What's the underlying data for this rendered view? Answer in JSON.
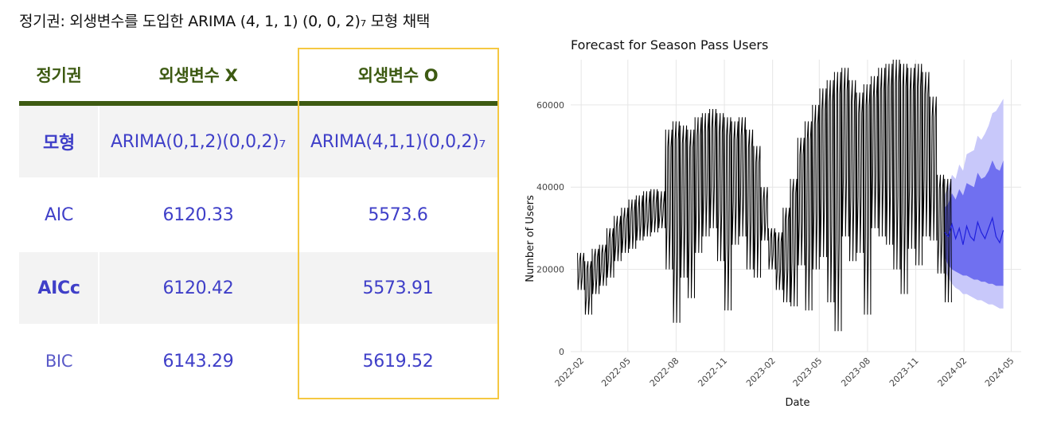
{
  "headline": "정기권: 외생변수를 도입한 ARIMA (4, 1, 1) (0, 0, 2)₇ 모형 채택",
  "table": {
    "headers": [
      "정기권",
      "외생변수 X",
      "외생변수 O"
    ],
    "rows": [
      {
        "label": "모형",
        "x": "ARIMA(0,1,2)(0,0,2)₇",
        "o": "ARIMA(4,1,1)(0,0,2)₇"
      },
      {
        "label": "AIC",
        "x": "6120.33",
        "o": "5573.6"
      },
      {
        "label": "AICc",
        "x": "6120.42",
        "o": "5573.91"
      },
      {
        "label": "BIC",
        "x": "6143.29",
        "o": "5619.52"
      }
    ],
    "colors": {
      "header_text": "#3d5a12",
      "body_text": "#3f3fc8",
      "highlight_border": "#f5c842",
      "rule": "#3d5a12"
    }
  },
  "chart_data": {
    "type": "line",
    "title": "Forecast for Season Pass Users",
    "xlabel": "Date",
    "ylabel": "Number of Users",
    "x_ticks": [
      "2022-02",
      "2022-05",
      "2022-08",
      "2022-11",
      "2023-02",
      "2023-05",
      "2023-08",
      "2023-11",
      "2024-02",
      "2024-05"
    ],
    "y_ticks": [
      "0",
      "20000",
      "40000",
      "60000"
    ],
    "ylim": [
      0,
      71000
    ],
    "xlim": [
      "2022-01-12",
      "2024-05-20"
    ],
    "grid": true,
    "colors": {
      "actual": "#000000",
      "forecast": "#2020dd",
      "pi80": "#7070f0",
      "pi95": "#c8c8fa"
    },
    "series": [
      {
        "role": "actual",
        "dates": [
          "2022-01-25",
          "2022-02-08",
          "2022-02-22",
          "2022-03-08",
          "2022-03-22",
          "2022-04-05",
          "2022-04-19",
          "2022-05-03",
          "2022-05-17",
          "2022-05-31",
          "2022-06-14",
          "2022-06-28",
          "2022-07-12",
          "2022-07-26",
          "2022-08-09",
          "2022-08-23",
          "2022-09-06",
          "2022-09-20",
          "2022-10-04",
          "2022-10-18",
          "2022-11-01",
          "2022-11-15",
          "2022-11-29",
          "2022-12-13",
          "2022-12-27",
          "2023-01-10",
          "2023-01-24",
          "2023-02-07",
          "2023-02-21",
          "2023-03-07",
          "2023-03-21",
          "2023-04-04",
          "2023-04-18",
          "2023-05-02",
          "2023-05-16",
          "2023-05-30",
          "2023-06-13",
          "2023-06-27",
          "2023-07-11",
          "2023-07-25",
          "2023-08-08",
          "2023-08-22",
          "2023-09-05",
          "2023-09-19",
          "2023-10-03",
          "2023-10-17",
          "2023-10-31",
          "2023-11-14",
          "2023-11-28",
          "2023-12-12",
          "2023-12-26"
        ],
        "high": [
          24000,
          22000,
          25000,
          26000,
          30000,
          33000,
          35000,
          37000,
          38000,
          39000,
          39500,
          39000,
          54000,
          56000,
          55000,
          54000,
          57000,
          58000,
          59000,
          58000,
          57000,
          56000,
          57000,
          54000,
          50000,
          40000,
          30000,
          29000,
          35000,
          42000,
          52000,
          56000,
          60000,
          64000,
          66000,
          68000,
          69000,
          66000,
          63000,
          65000,
          67000,
          69000,
          70000,
          71000,
          70000,
          69000,
          70000,
          68000,
          62000,
          43000,
          42000
        ],
        "low": [
          15000,
          9000,
          14000,
          16000,
          18000,
          22000,
          24000,
          25000,
          27000,
          28000,
          29000,
          30000,
          20000,
          7000,
          18000,
          13000,
          24000,
          28000,
          30000,
          22000,
          10000,
          26000,
          28000,
          20000,
          18000,
          27000,
          20000,
          15000,
          12000,
          11000,
          21000,
          10000,
          20000,
          23000,
          12000,
          5000,
          28000,
          22000,
          24000,
          9000,
          30000,
          28000,
          26000,
          20000,
          14000,
          25000,
          21000,
          28000,
          27000,
          19000,
          12000
        ]
      },
      {
        "role": "forecast",
        "dates": [
          "2023-12-26",
          "2024-01-02",
          "2024-01-09",
          "2024-01-16",
          "2024-01-23",
          "2024-01-30",
          "2024-02-06",
          "2024-02-13",
          "2024-02-20",
          "2024-02-27",
          "2024-03-05",
          "2024-03-12",
          "2024-03-19",
          "2024-03-26",
          "2024-04-02",
          "2024-04-09",
          "2024-04-16"
        ],
        "mean": [
          29000,
          28000,
          31000,
          27500,
          30000,
          26000,
          30500,
          28000,
          27000,
          31500,
          29000,
          27500,
          30000,
          32500,
          28000,
          26500,
          29500
        ],
        "lo80": [
          23000,
          21000,
          20000,
          19500,
          19000,
          18500,
          18500,
          18000,
          17500,
          17500,
          17000,
          17000,
          16500,
          16500,
          16000,
          16000,
          16000
        ],
        "hi80": [
          35000,
          36000,
          38500,
          37000,
          39500,
          38000,
          41000,
          40500,
          40000,
          43500,
          42000,
          42500,
          44000,
          46500,
          44500,
          44000,
          46500
        ],
        "lo95": [
          20000,
          18000,
          16500,
          15500,
          15000,
          14000,
          14000,
          13500,
          13000,
          12500,
          12500,
          12000,
          11500,
          11500,
          11000,
          10500,
          10500
        ],
        "hi95": [
          38000,
          40000,
          43000,
          42000,
          45500,
          44000,
          48000,
          48500,
          49000,
          52500,
          51500,
          53000,
          55000,
          58000,
          58500,
          60000,
          61500
        ]
      }
    ]
  }
}
